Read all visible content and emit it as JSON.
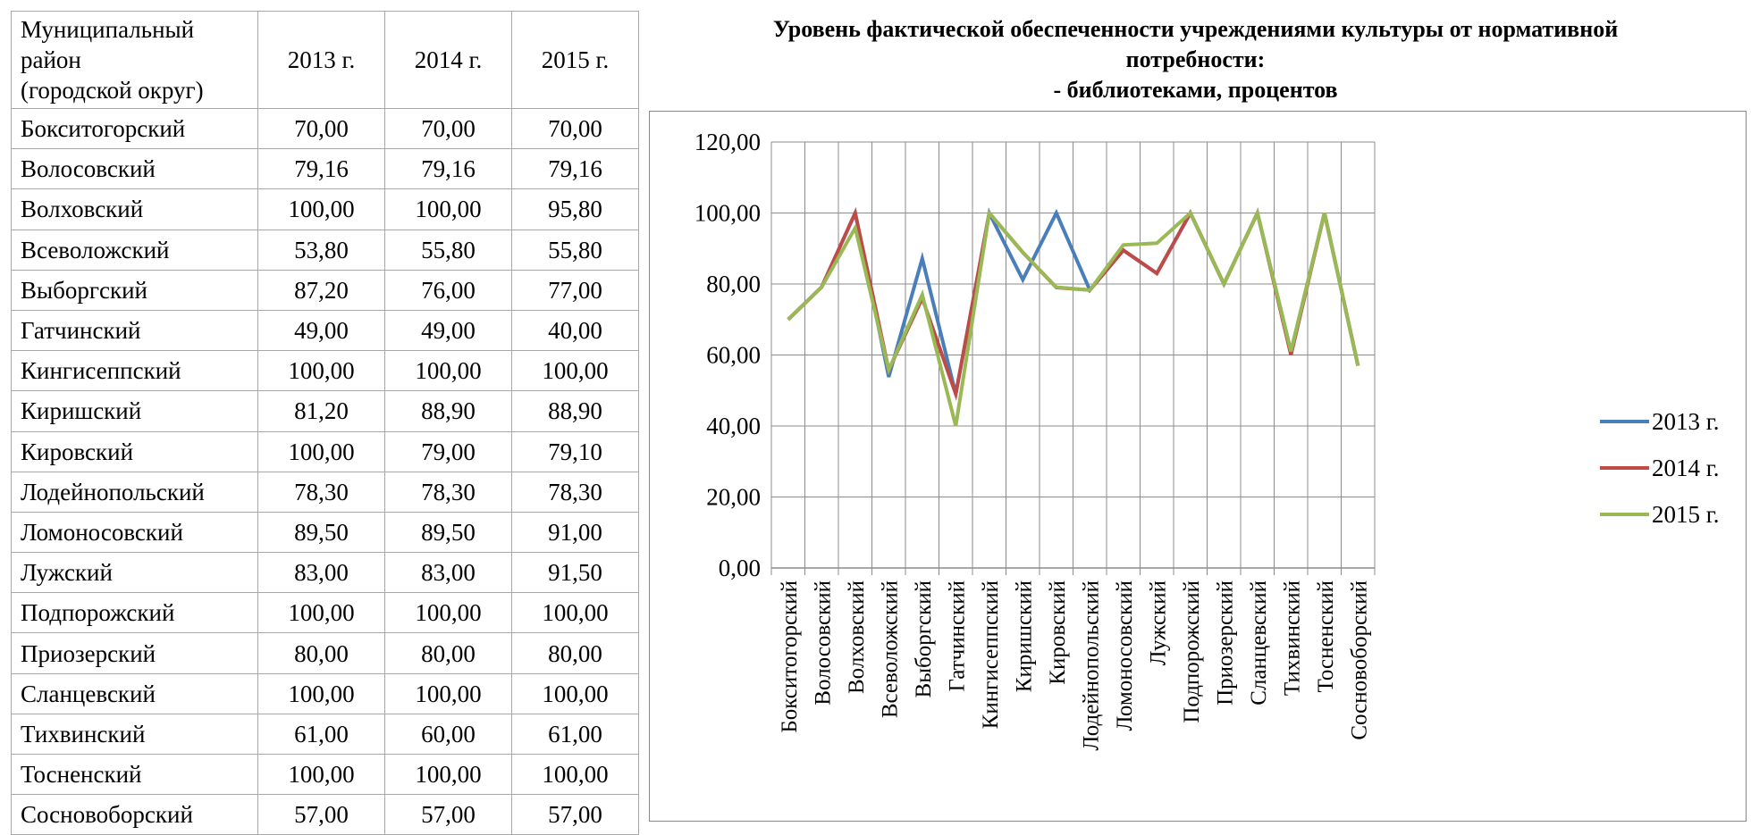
{
  "table": {
    "header": {
      "district_lines": [
        "Муниципальный",
        "район",
        "(городской округ)"
      ],
      "years": [
        "2013 г.",
        "2014 г.",
        "2015 г."
      ]
    },
    "rows": [
      {
        "name": "Бокситогорский",
        "values": [
          "70,00",
          "70,00",
          "70,00"
        ]
      },
      {
        "name": "Волосовский",
        "values": [
          "79,16",
          "79,16",
          "79,16"
        ]
      },
      {
        "name": "Волховский",
        "values": [
          "100,00",
          "100,00",
          "95,80"
        ]
      },
      {
        "name": "Всеволожский",
        "values": [
          "53,80",
          "55,80",
          "55,80"
        ]
      },
      {
        "name": "Выборгский",
        "values": [
          "87,20",
          "76,00",
          "77,00"
        ]
      },
      {
        "name": "Гатчинский",
        "values": [
          "49,00",
          "49,00",
          "40,00"
        ]
      },
      {
        "name": "Кингисеппский",
        "values": [
          "100,00",
          "100,00",
          "100,00"
        ]
      },
      {
        "name": "Киришский",
        "values": [
          "81,20",
          "88,90",
          "88,90"
        ]
      },
      {
        "name": "Кировский",
        "values": [
          "100,00",
          "79,00",
          "79,10"
        ]
      },
      {
        "name": "Лодейнопольский",
        "values": [
          "78,30",
          "78,30",
          "78,30"
        ]
      },
      {
        "name": "Ломоносовский",
        "values": [
          "89,50",
          "89,50",
          "91,00"
        ]
      },
      {
        "name": "Лужский",
        "values": [
          "83,00",
          "83,00",
          "91,50"
        ]
      },
      {
        "name": "Подпорожский",
        "values": [
          "100,00",
          "100,00",
          "100,00"
        ]
      },
      {
        "name": "Приозерский",
        "values": [
          "80,00",
          "80,00",
          "80,00"
        ]
      },
      {
        "name": "Сланцевский",
        "values": [
          "100,00",
          "100,00",
          "100,00"
        ]
      },
      {
        "name": "Тихвинский",
        "values": [
          "61,00",
          "60,00",
          "61,00"
        ]
      },
      {
        "name": "Тосненский",
        "values": [
          "100,00",
          "100,00",
          "100,00"
        ]
      },
      {
        "name": "Сосновоборский",
        "values": [
          "57,00",
          "57,00",
          "57,00"
        ]
      }
    ]
  },
  "chart_data": {
    "type": "line",
    "title_lines": [
      "Уровень фактической обеспеченности учреждениями культуры от нормативной",
      "потребности:",
      "- библиотеками, процентов"
    ],
    "categories": [
      "Бокситогорский",
      "Волосовский",
      "Волховский",
      "Всеволожский",
      "Выборгский",
      "Гатчинский",
      "Кингисеппский",
      "Киришский",
      "Кировский",
      "Лодейнопольский",
      "Ломоносовский",
      "Лужский",
      "Подпорожский",
      "Приозерский",
      "Сланцевский",
      "Тихвинский",
      "Тосненский",
      "Сосновоборский"
    ],
    "series": [
      {
        "name": "2013 г.",
        "color": "#4a7ebb",
        "values": [
          70,
          79.16,
          100,
          53.8,
          87.2,
          49,
          100,
          81.2,
          100,
          78.3,
          89.5,
          83,
          100,
          80,
          100,
          61,
          100,
          57
        ]
      },
      {
        "name": "2014 г.",
        "color": "#be4b48",
        "values": [
          70,
          79.16,
          100,
          55.8,
          76,
          49,
          100,
          88.9,
          79,
          78.3,
          89.5,
          83,
          100,
          80,
          100,
          60,
          100,
          57
        ]
      },
      {
        "name": "2015 г.",
        "color": "#98b954",
        "values": [
          70,
          79.16,
          95.8,
          55.8,
          77,
          40,
          100,
          88.9,
          79.1,
          78.3,
          91,
          91.5,
          100,
          80,
          100,
          61,
          100,
          57
        ]
      }
    ],
    "y_ticks": [
      "0,00",
      "20,00",
      "40,00",
      "60,00",
      "80,00",
      "100,00",
      "120,00"
    ],
    "ylim": [
      0,
      120
    ],
    "grid": true,
    "legend_position": "right"
  }
}
